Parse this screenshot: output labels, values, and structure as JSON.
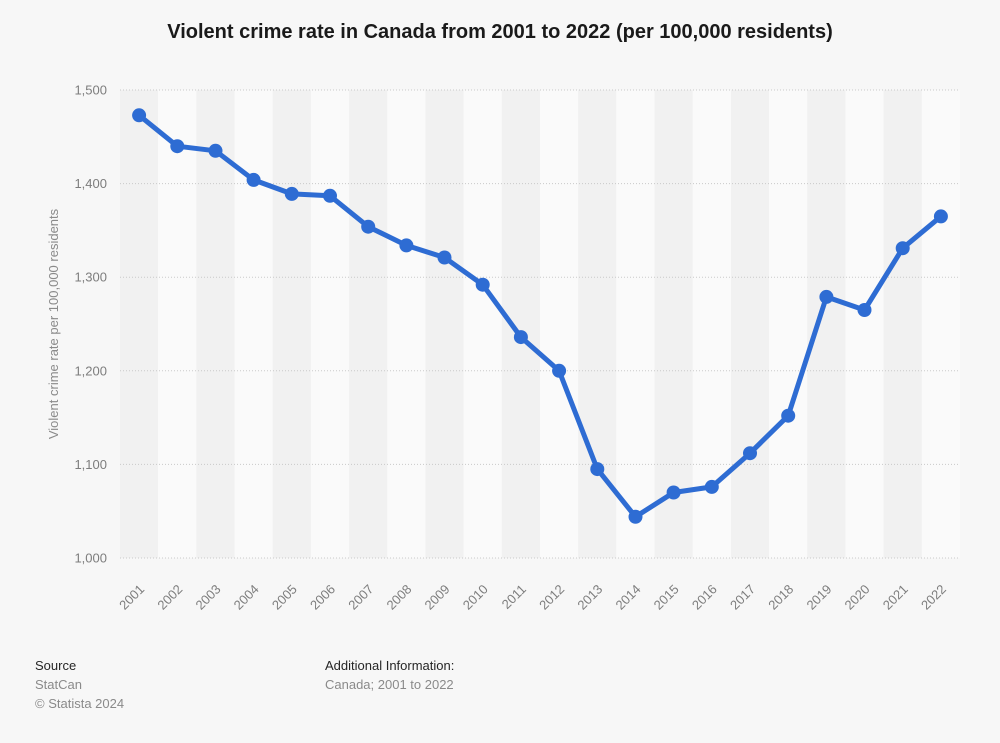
{
  "page": {
    "title": "Violent crime rate in Canada from 2001 to 2022 (per 100,000 residents)"
  },
  "chart_data": {
    "type": "line",
    "title": "Violent crime rate in Canada from 2001 to 2022 (per 100,000 residents)",
    "categories": [
      "2001",
      "2002",
      "2003",
      "2004",
      "2005",
      "2006",
      "2007",
      "2008",
      "2009",
      "2010",
      "2011",
      "2012",
      "2013",
      "2014",
      "2015",
      "2016",
      "2017",
      "2018",
      "2019",
      "2020",
      "2021",
      "2022"
    ],
    "values": [
      1473,
      1440,
      1435,
      1404,
      1389,
      1387,
      1354,
      1334,
      1321,
      1292,
      1236,
      1200,
      1095,
      1044,
      1070,
      1076,
      1112,
      1152,
      1279,
      1265,
      1331,
      1365
    ],
    "xlabel": "",
    "ylabel": "Violent crime rate per 100,000 residents",
    "ylim": [
      1000,
      1500
    ],
    "ytick_step": 100,
    "ytick_labels": [
      "1,000",
      "1,100",
      "1,200",
      "1,300",
      "1,400",
      "1,500"
    ],
    "grid": "horizontal-dotted",
    "legend": "none",
    "line_color": "#2e6cd3",
    "point_radius": 7,
    "line_width": 5,
    "gridline_color": "#c9c9c9",
    "tick_label_color": "#7d7d7d",
    "axis_title_color": "#8a8a8a",
    "band_color_odd_year": "#f1f1f1",
    "band_color_even_year": "#fafafa",
    "background_color": "#f7f7f7"
  },
  "footer": {
    "source_label": "Source",
    "source_value": "StatCan",
    "copyright": "© Statista 2024",
    "additional_label": "Additional Information:",
    "additional_value": "Canada; 2001 to 2022"
  }
}
